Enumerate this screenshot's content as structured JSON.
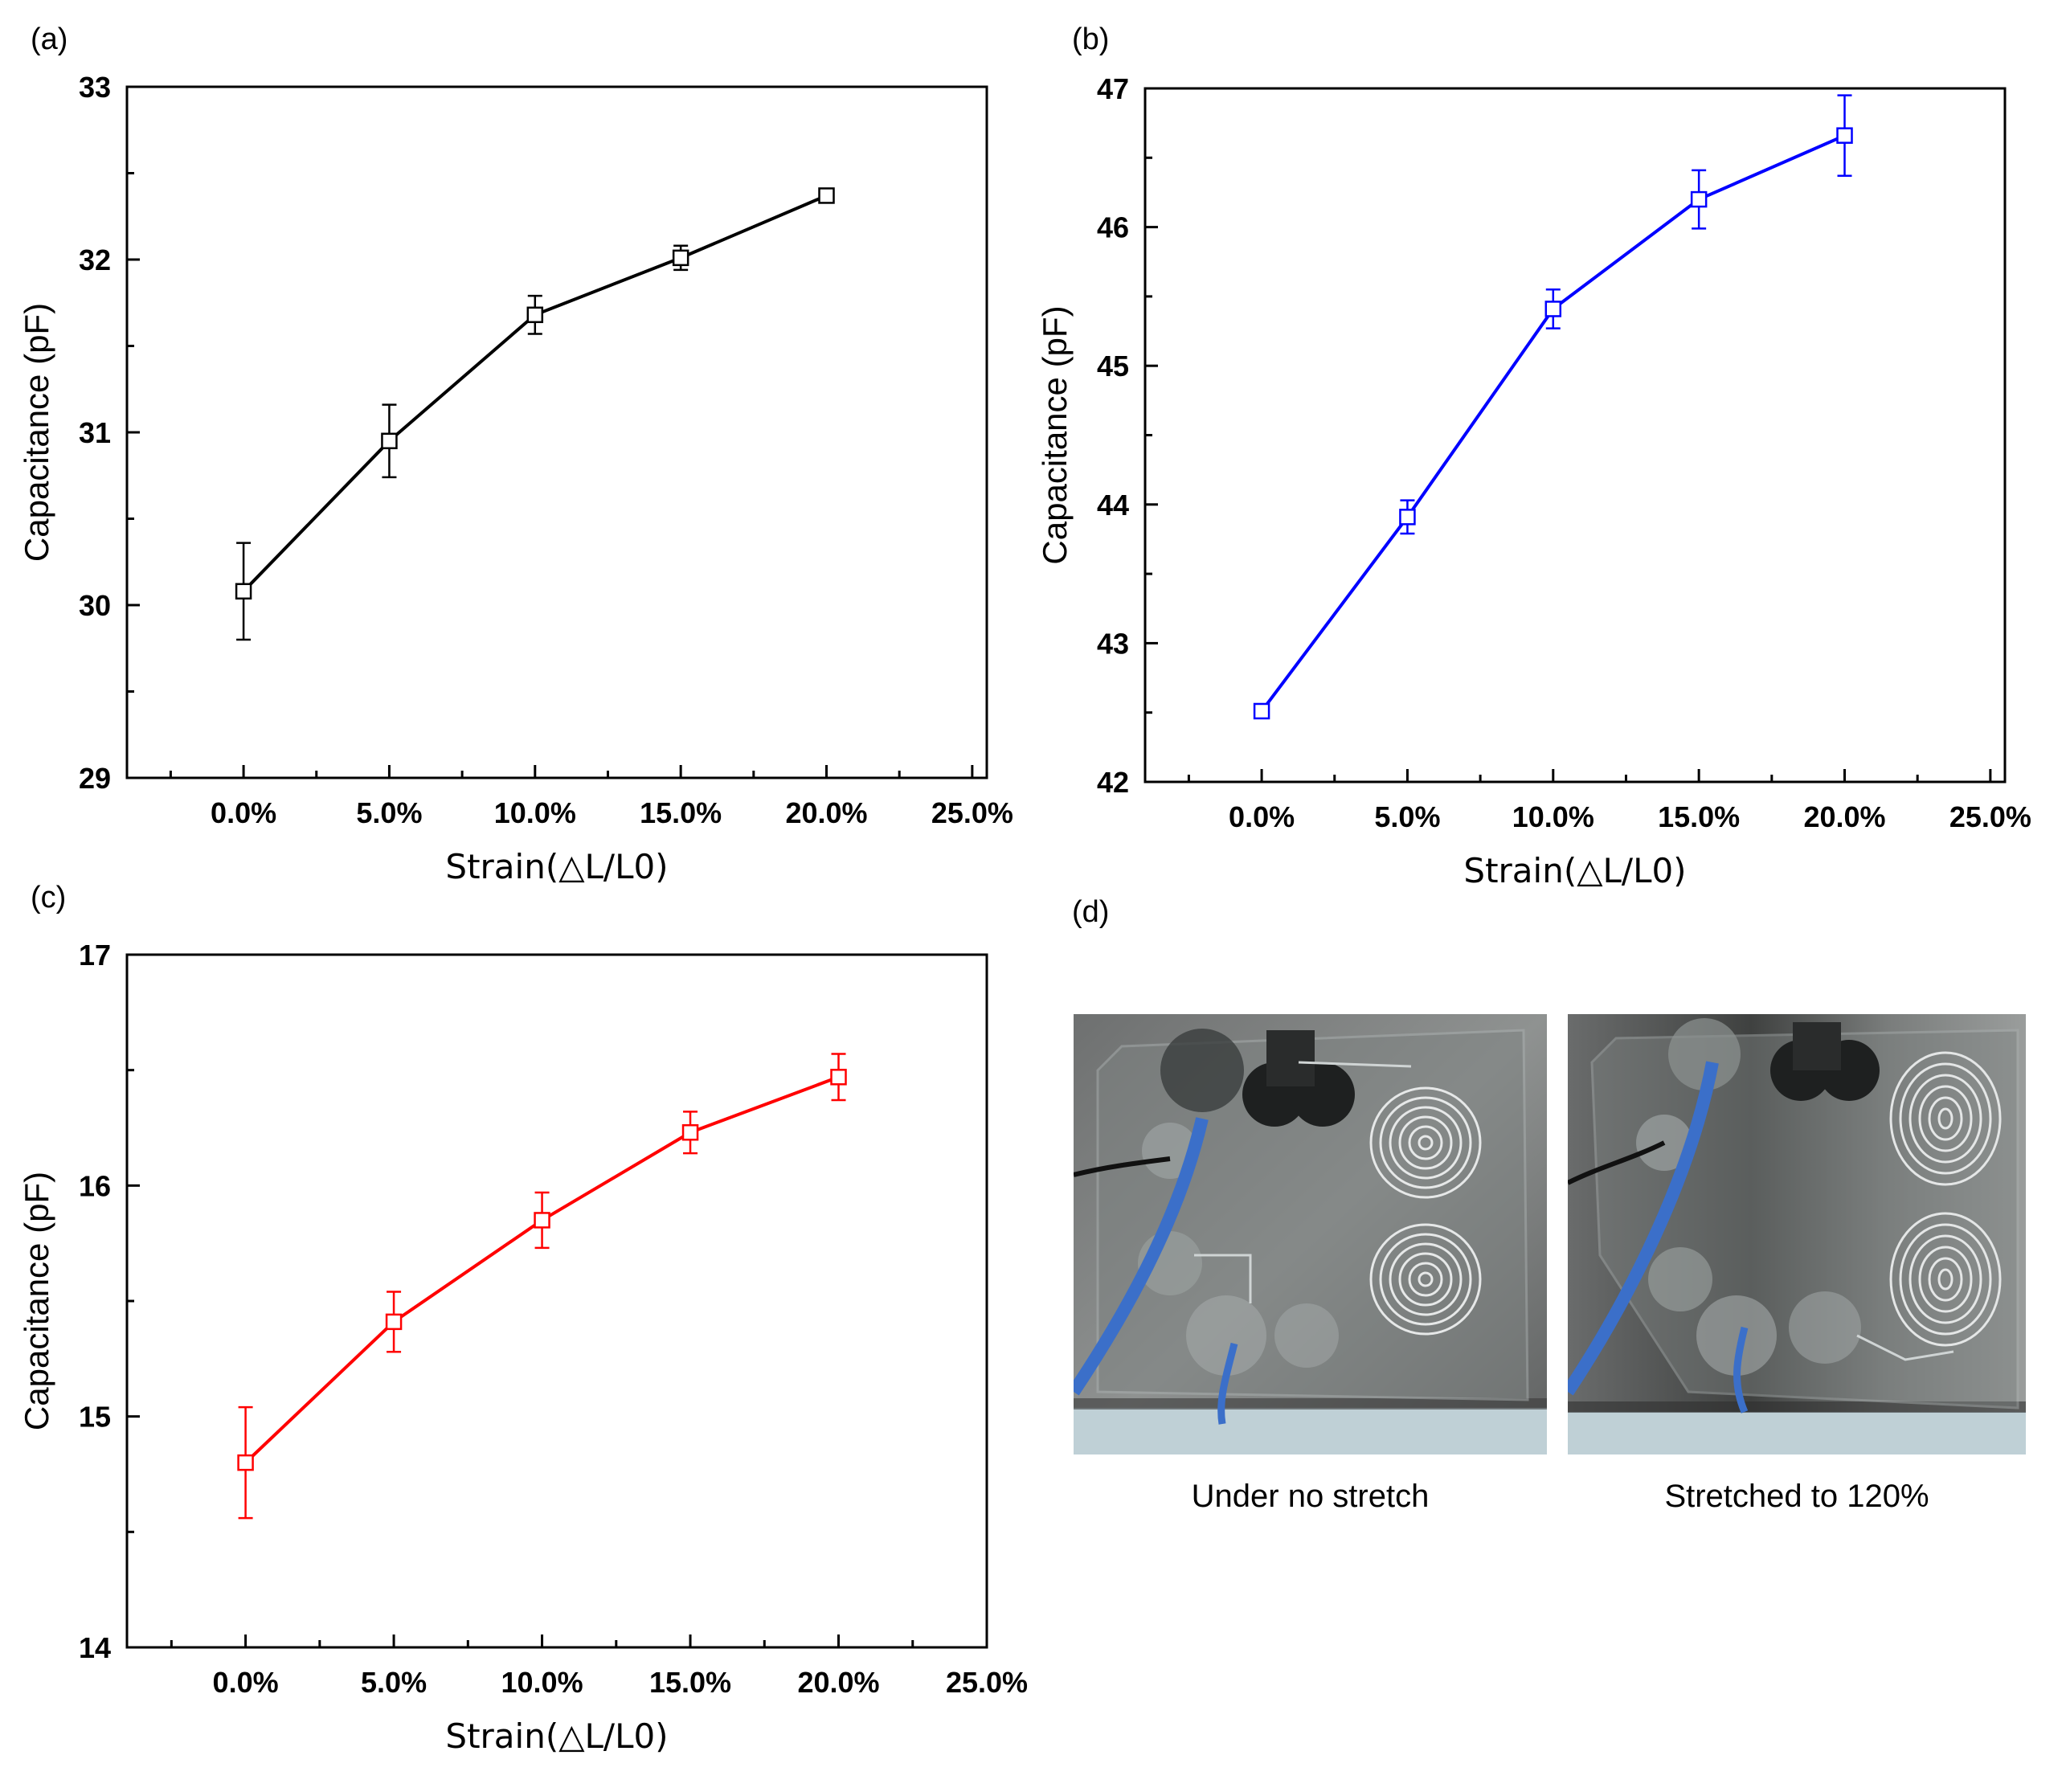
{
  "panels": {
    "a": "(a)",
    "b": "(b)",
    "c": "(c)",
    "d": "(d)"
  },
  "chart_data": [
    {
      "type": "line",
      "panel": "a",
      "title": "",
      "xlabel": "Strain(△L/L0)",
      "ylabel": "Capacitance (pF)",
      "color": "#000000",
      "x": [
        0,
        5,
        10,
        15,
        20
      ],
      "xticks": [
        "0.0%",
        "5.0%",
        "10.0%",
        "15.0%",
        "20.0%",
        "25.0%"
      ],
      "xlim": [
        -4,
        25.5
      ],
      "ylim": [
        29,
        33
      ],
      "yticks": [
        "29",
        "30",
        "31",
        "32",
        "33"
      ],
      "series": [
        {
          "values": [
            30.08,
            30.95,
            31.68,
            32.01,
            32.37
          ],
          "errors": [
            0.28,
            0.21,
            0.11,
            0.07,
            0.03
          ]
        }
      ]
    },
    {
      "type": "line",
      "panel": "b",
      "title": "",
      "xlabel": "Strain(△L/L0)",
      "ylabel": "Capacitance (pF)",
      "color": "#0000ff",
      "x": [
        0,
        5,
        10,
        15,
        20
      ],
      "xticks": [
        "0.0%",
        "5.0%",
        "10.0%",
        "15.0%",
        "20.0%",
        "25.0%"
      ],
      "xlim": [
        -4,
        25.5
      ],
      "ylim": [
        42,
        47
      ],
      "yticks": [
        "42",
        "43",
        "44",
        "45",
        "46",
        "47"
      ],
      "series": [
        {
          "values": [
            42.51,
            43.91,
            45.41,
            46.2,
            46.66
          ],
          "errors": [
            0.05,
            0.12,
            0.14,
            0.21,
            0.29
          ]
        }
      ]
    },
    {
      "type": "line",
      "panel": "c",
      "title": "",
      "xlabel": "Strain(△L/L0)",
      "ylabel": "Capacitance (pF)",
      "color": "#ff0000",
      "x": [
        0,
        5,
        10,
        15,
        20
      ],
      "xticks": [
        "0.0%",
        "5.0%",
        "10.0%",
        "15.0%",
        "20.0%",
        "25.0%"
      ],
      "xlim": [
        -4,
        25
      ],
      "ylim": [
        14,
        17
      ],
      "yticks": [
        "14",
        "15",
        "16",
        "17"
      ],
      "series": [
        {
          "values": [
            14.8,
            15.41,
            15.85,
            16.23,
            16.47
          ],
          "errors": [
            0.24,
            0.13,
            0.12,
            0.09,
            0.1
          ]
        }
      ]
    }
  ],
  "photos": {
    "left_caption": "Under no stretch",
    "right_caption": "Stretched to 120%"
  }
}
